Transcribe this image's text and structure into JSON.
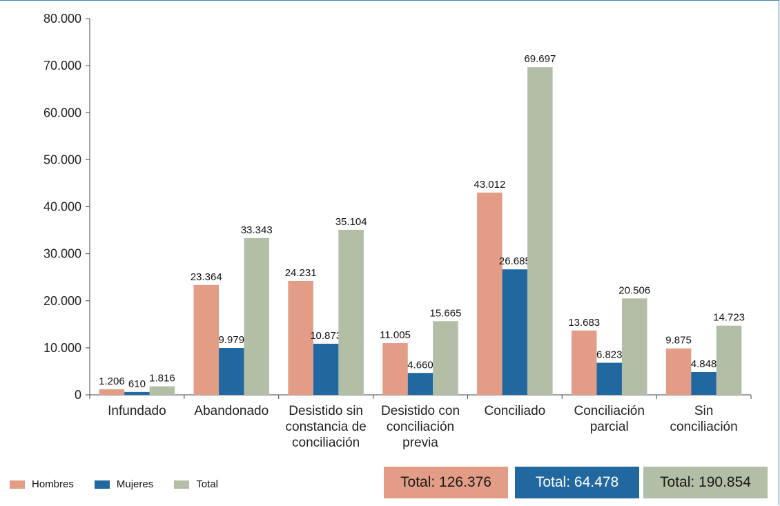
{
  "chart_data": {
    "type": "bar",
    "categories": [
      [
        "Infundado"
      ],
      [
        "Abandonado"
      ],
      [
        "Desistido sin",
        "constancia de",
        "conciliación"
      ],
      [
        "Desistido con",
        "conciliación",
        "previa"
      ],
      [
        "Conciliado"
      ],
      [
        "Conciliación",
        "parcial"
      ],
      [
        "Sin",
        "conciliación"
      ]
    ],
    "series": [
      {
        "name": "Hombres",
        "color": "#e39d87",
        "values": [
          1206,
          23364,
          24231,
          11005,
          43012,
          13683,
          9875
        ],
        "labels": [
          "1.206",
          "23.364",
          "24.231",
          "11.005",
          "43.012",
          "13.683",
          "9.875"
        ]
      },
      {
        "name": "Mujeres",
        "color": "#2168a0",
        "values": [
          610,
          9979,
          10873,
          4660,
          26685,
          6823,
          4848
        ],
        "labels": [
          "610",
          "9.979",
          "10.873",
          "4.660",
          "26.685",
          "6.823",
          "4.848"
        ]
      },
      {
        "name": "Total",
        "color": "#b2bea6",
        "values": [
          1816,
          33343,
          35104,
          15665,
          69697,
          20506,
          14723
        ],
        "labels": [
          "1.816",
          "33.343",
          "35.104",
          "15.665",
          "69.697",
          "20.506",
          "14.723"
        ]
      }
    ],
    "ylim": [
      0,
      80000
    ],
    "yticks": [
      0,
      10000,
      20000,
      30000,
      40000,
      50000,
      60000,
      70000,
      80000
    ],
    "ytick_labels": [
      "0",
      "10.000",
      "20.000",
      "30.000",
      "40.000",
      "50.000",
      "60.000",
      "70.000",
      "80.000"
    ],
    "grid": false,
    "legend_position": "bottom-left"
  },
  "legend": {
    "hombres": "Hombres",
    "mujeres": "Mujeres",
    "total": "Total"
  },
  "totals": {
    "hombres": "Total: 126.376",
    "mujeres": "Total: 64.478",
    "total": "Total: 190.854"
  },
  "colors": {
    "hombres": "#e39d87",
    "mujeres": "#2168a0",
    "total": "#b2bea6",
    "frame": "#3a7fb5"
  }
}
